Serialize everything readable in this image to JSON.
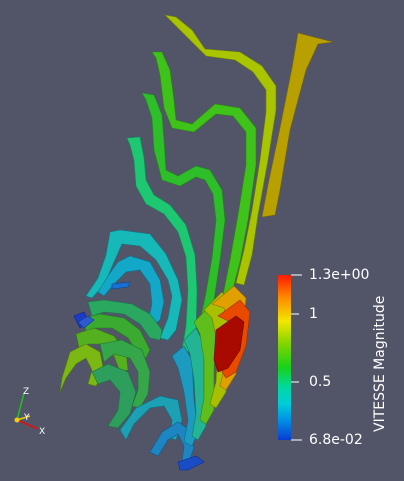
{
  "scalar_bar": {
    "title": "VITESSE Magnitude",
    "max_label": "1.3e+00",
    "high_label": "1",
    "mid_label": "0.5",
    "min_label": "6.8e-02",
    "colors": [
      "#ff1a00",
      "#ff8c00",
      "#f2e600",
      "#7fd400",
      "#17d21a",
      "#00d8a0",
      "#00ccd8",
      "#0090e6",
      "#0a3cd2"
    ]
  },
  "orientation_axes": {
    "x_label": "X",
    "y_label": "Y",
    "z_label": "Z",
    "colors": {
      "x": "#e01010",
      "y": "#e0d010",
      "z": "#20c020"
    }
  },
  "viewport": {
    "background": "#525468"
  }
}
